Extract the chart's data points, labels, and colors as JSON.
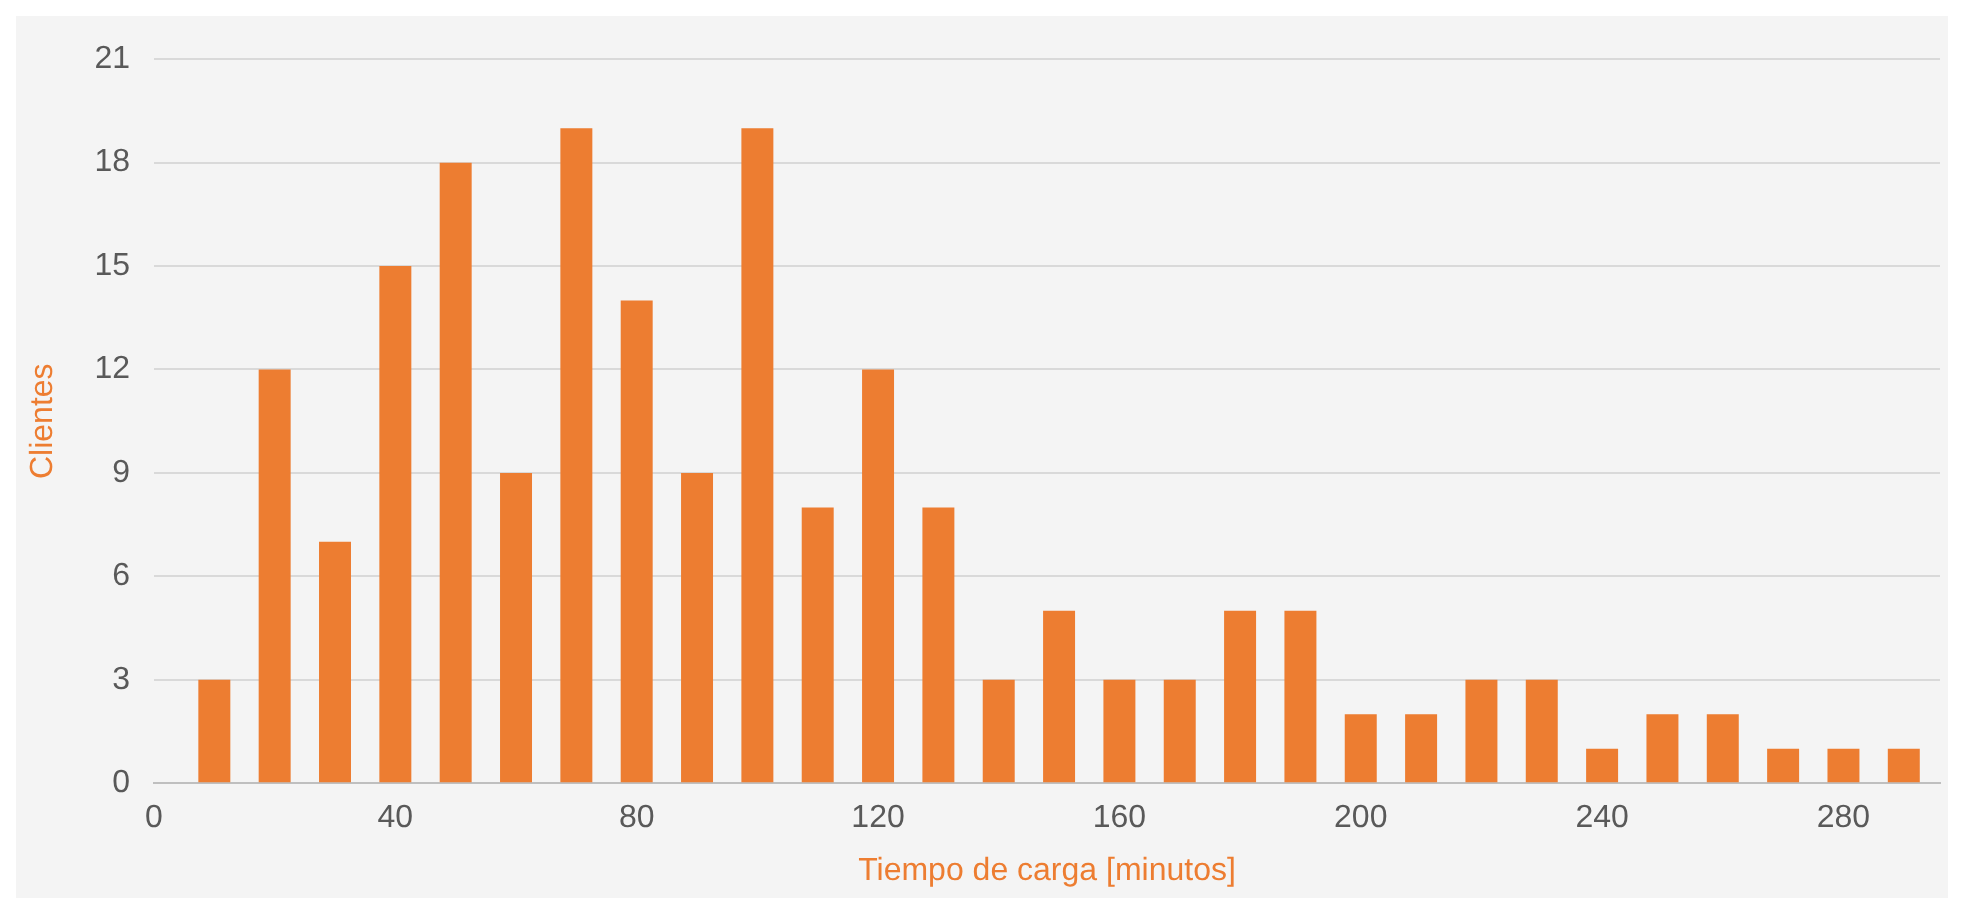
{
  "chart_data": {
    "type": "bar",
    "xlabel": "Tiempo de carga [minutos]",
    "ylabel": "Clientes",
    "x": [
      10,
      20,
      30,
      40,
      50,
      60,
      70,
      80,
      90,
      100,
      110,
      120,
      130,
      140,
      150,
      160,
      170,
      180,
      190,
      200,
      210,
      220,
      230,
      240,
      250,
      260,
      270,
      280,
      290
    ],
    "values": [
      3,
      12,
      7,
      15,
      18,
      9,
      19,
      14,
      9,
      19,
      8,
      12,
      8,
      3,
      5,
      3,
      3,
      5,
      5,
      2,
      2,
      3,
      3,
      1,
      2,
      2,
      1,
      1,
      1
    ],
    "color": "#ed7d31",
    "xlim": [
      0,
      296
    ],
    "xticks": [
      0,
      40,
      80,
      120,
      160,
      200,
      240,
      280
    ],
    "ylim": [
      0,
      21
    ],
    "yticks": [
      0,
      3,
      6,
      9,
      12,
      15,
      18,
      21
    ],
    "grid": "y",
    "legend": false
  }
}
